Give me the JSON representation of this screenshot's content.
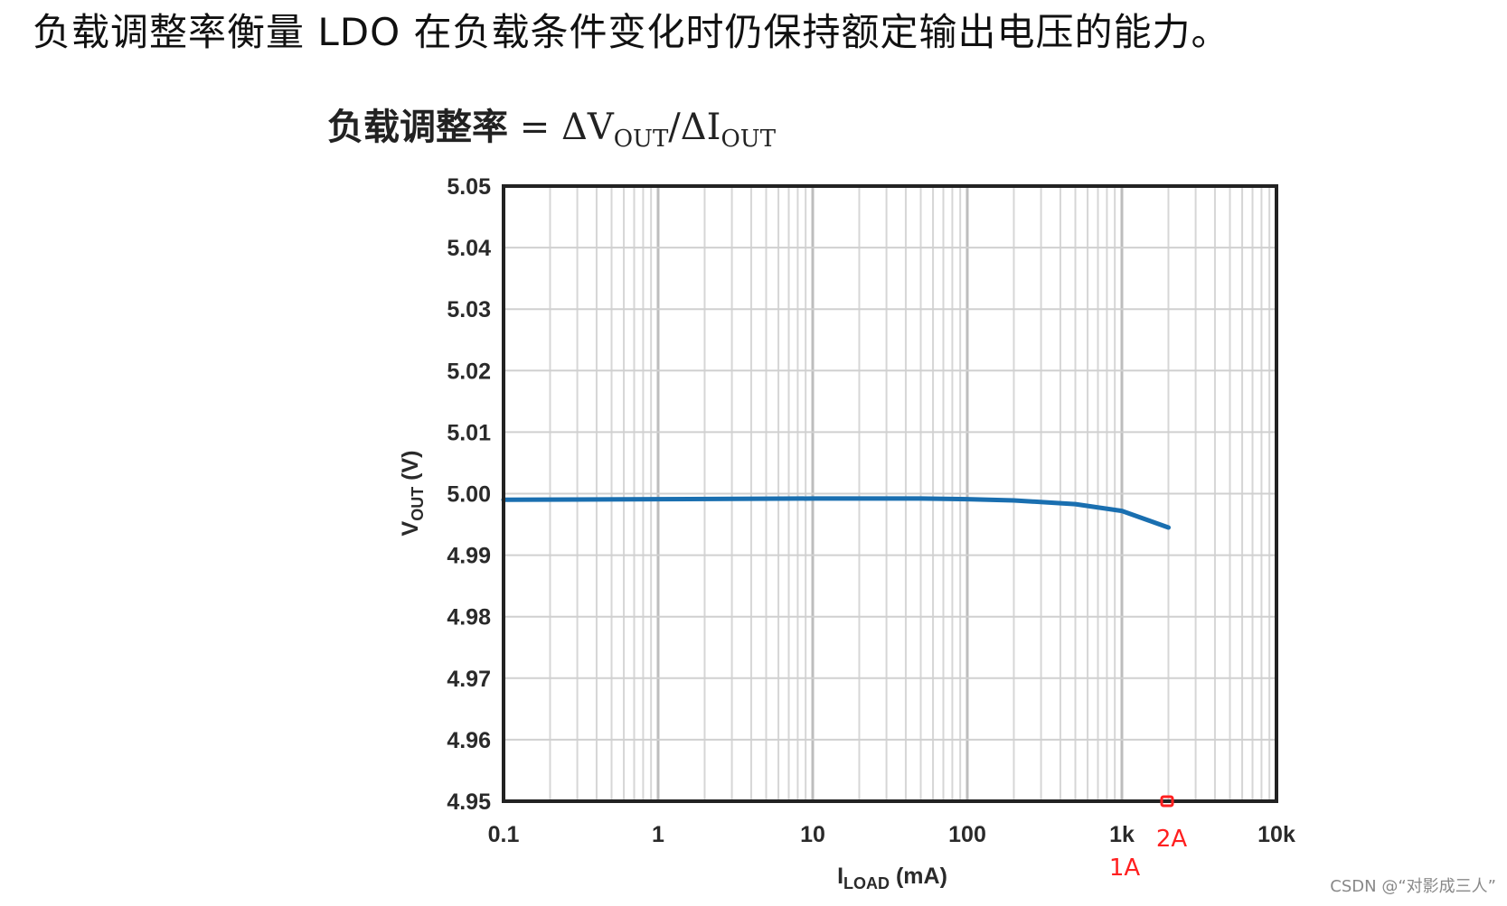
{
  "intro_text": "负载调整率衡量 LDO 在负载条件变化时仍保持额定输出电压的能力。",
  "formula": {
    "label": "负载调整率",
    "eq": " = ΔV",
    "sub1": "OUT",
    "mid": "/ΔI",
    "sub2": "OUT"
  },
  "annotations": {
    "marker_label": "2A",
    "k1_label": "1A",
    "color": "#ff2020"
  },
  "watermark": "CSDN @“对影成三人”",
  "chart_data": {
    "type": "line",
    "title": "",
    "xlabel": "ILOAD (mA)",
    "xlabel_main": "I",
    "xlabel_sub": "LOAD",
    "xlabel_unit": " (mA)",
    "ylabel": "VOUT (V)",
    "ylabel_main": "V",
    "ylabel_sub": "OUT",
    "ylabel_unit": " (V)",
    "xscale": "log",
    "xlim": [
      0.1,
      10000
    ],
    "ylim": [
      4.95,
      5.05
    ],
    "grid": true,
    "x_tick_labels": [
      "0.1",
      "1",
      "10",
      "100",
      "1k",
      "10k"
    ],
    "y_tick_labels": [
      "5.05",
      "5.04",
      "5.03",
      "5.02",
      "5.01",
      "5.00",
      "4.99",
      "4.98",
      "4.97",
      "4.96",
      "4.95"
    ],
    "series": [
      {
        "name": "VOUT",
        "color": "#1a6fb0",
        "x": [
          0.1,
          1,
          10,
          50,
          100,
          200,
          500,
          1000,
          2000
        ],
        "y": [
          4.999,
          4.9991,
          4.9992,
          4.9992,
          4.9991,
          4.9989,
          4.9983,
          4.9972,
          4.9945
        ]
      }
    ],
    "markers": [
      {
        "x": 2000,
        "y": 4.95,
        "shape": "square",
        "color": "#ff2020"
      }
    ]
  }
}
